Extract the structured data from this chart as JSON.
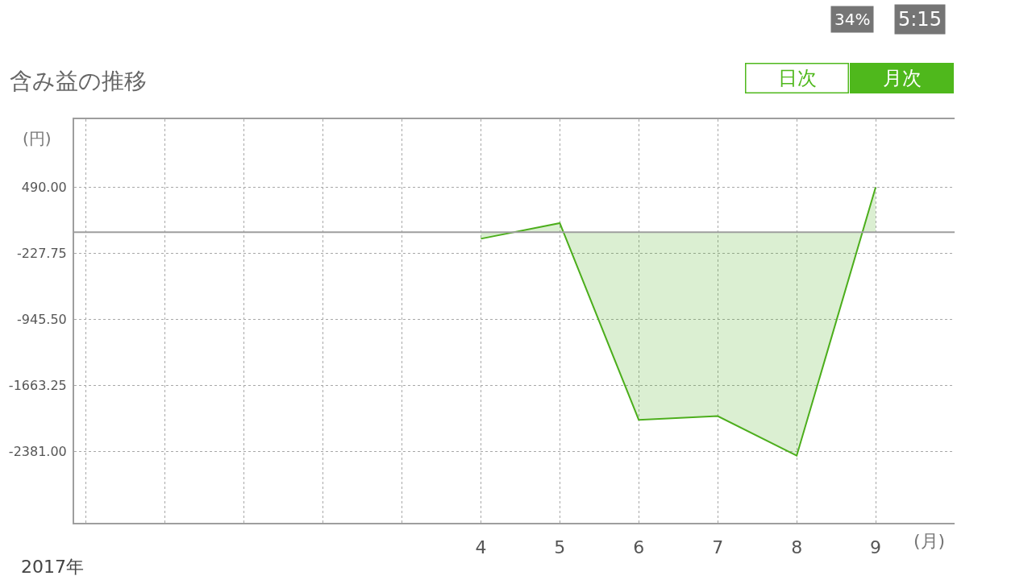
{
  "chart_data": {
    "type": "area",
    "title": "含み益の推移",
    "xlabel": "(月)",
    "ylabel": "(円)",
    "annotations": [
      "2017年",
      "日次",
      "月次",
      "34%",
      "5:15"
    ],
    "x": [
      4,
      5,
      6,
      7,
      8,
      9
    ],
    "series": [
      {
        "color": "#4cae1c",
        "values": [
          -70,
          100,
          -2040,
          -2000,
          -2430,
          490
        ]
      }
    ],
    "xlim": [
      -1.15,
      10
    ],
    "xticks": [
      {
        "value": -1,
        "label": null
      },
      {
        "value": 0,
        "label": null
      },
      {
        "value": 1,
        "label": null
      },
      {
        "value": 2,
        "label": null
      },
      {
        "value": 3,
        "label": null
      },
      4,
      5,
      6,
      7,
      8,
      9
    ],
    "ylim": [
      -3160,
      1230
    ],
    "yticks": [
      {
        "value": 490,
        "label": "490.00"
      },
      {
        "value": -227.75,
        "label": "-227.75"
      },
      {
        "value": -945.5,
        "label": "-945.50"
      },
      {
        "value": -1663.25,
        "label": "-1663.25"
      },
      {
        "value": -2381,
        "label": "-2381.00"
      }
    ],
    "ref_lines": [
      {
        "axis": "y",
        "value": 0,
        "color": "#9e9e9e"
      }
    ],
    "grid": true,
    "legend": false
  }
}
